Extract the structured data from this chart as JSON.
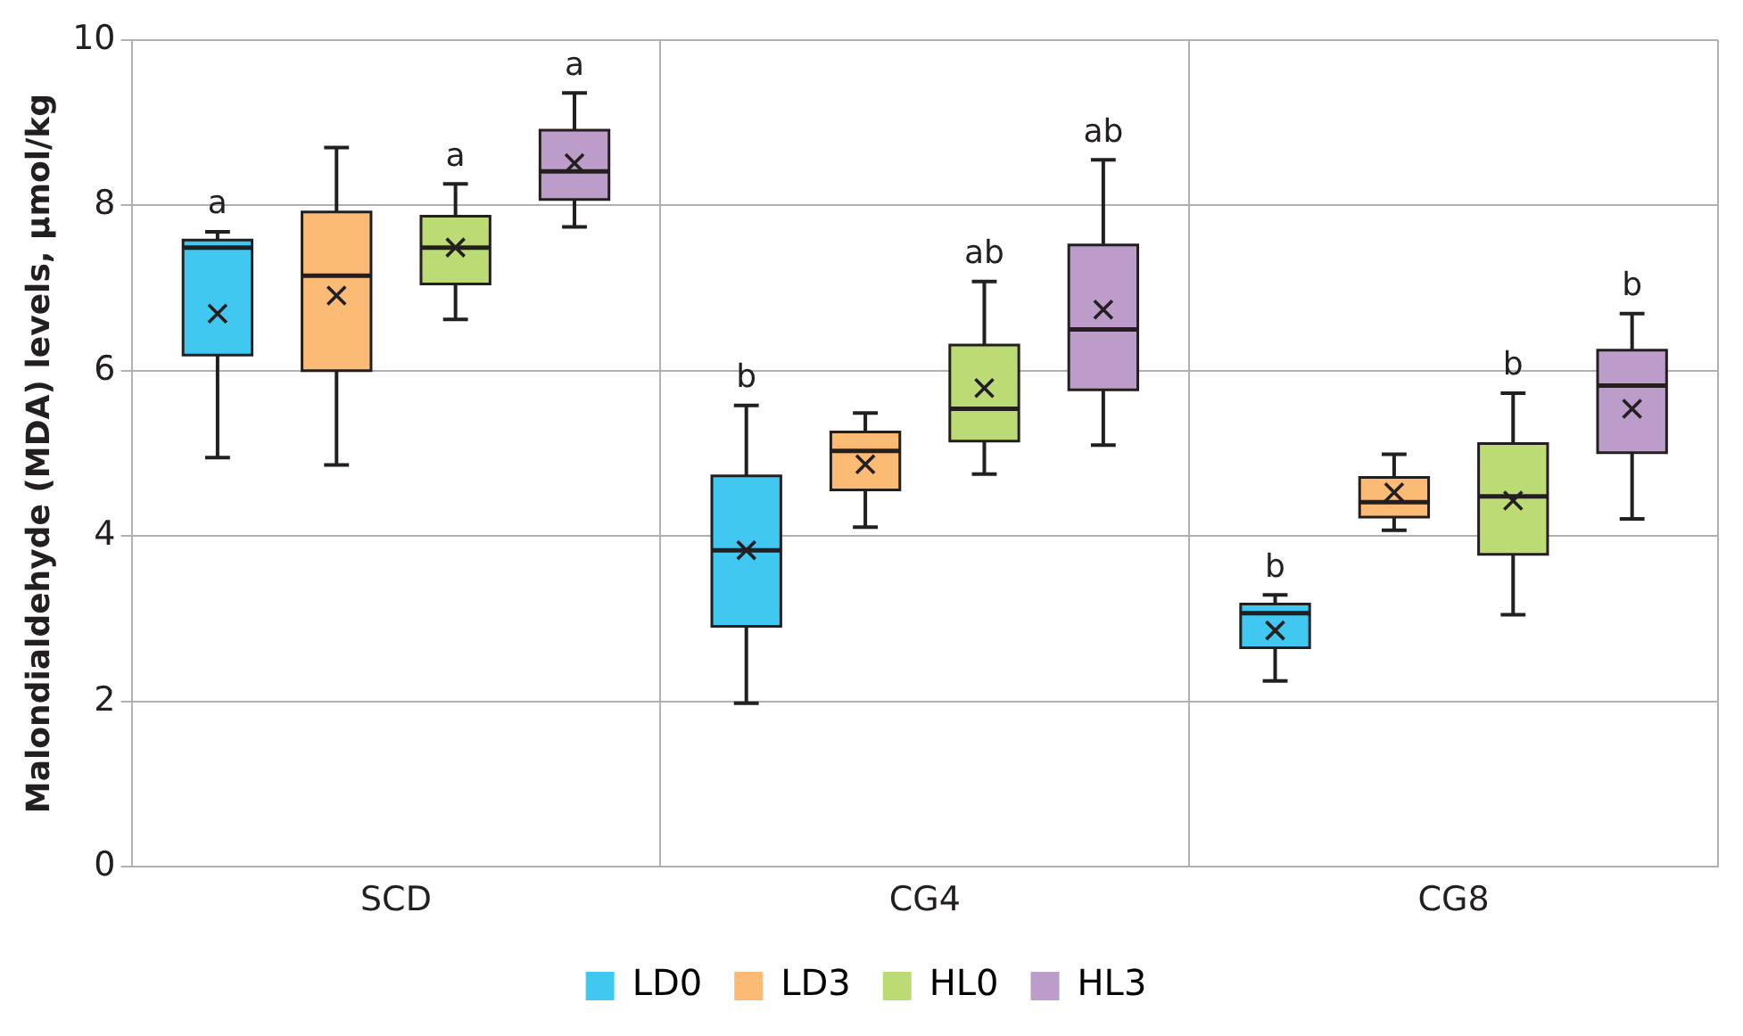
{
  "chart_data": {
    "type": "box",
    "ylabel": "Malondialdehyde (MDA) levels, µmol/kg",
    "categories": [
      "SCD",
      "CG4",
      "CG8"
    ],
    "ylim": [
      0,
      10
    ],
    "yticks": [
      0,
      2,
      4,
      6,
      8,
      10
    ],
    "grid": true,
    "legend": "bottom",
    "series": [
      {
        "name": "LD0",
        "color": "#40c8f0",
        "value_labels": [
          "a",
          "b",
          "b"
        ],
        "boxes": [
          {
            "low": 4.95,
            "q1": 6.19,
            "median": 7.49,
            "q3": 7.58,
            "high": 7.68,
            "mean": 6.69
          },
          {
            "low": 1.98,
            "q1": 2.91,
            "median": 3.83,
            "q3": 4.73,
            "high": 5.58,
            "mean": 3.83
          },
          {
            "low": 2.25,
            "q1": 2.65,
            "median": 3.07,
            "q3": 3.18,
            "high": 3.29,
            "mean": 2.86
          }
        ]
      },
      {
        "name": "LD3",
        "color": "#fbbb74",
        "value_labels": [
          null,
          null,
          null
        ],
        "boxes": [
          {
            "low": 4.86,
            "q1": 6.0,
            "median": 7.15,
            "q3": 7.92,
            "high": 8.7,
            "mean": 6.91
          },
          {
            "low": 4.11,
            "q1": 4.56,
            "median": 5.03,
            "q3": 5.26,
            "high": 5.49,
            "mean": 4.87
          },
          {
            "low": 4.07,
            "q1": 4.23,
            "median": 4.41,
            "q3": 4.71,
            "high": 4.99,
            "mean": 4.53
          }
        ]
      },
      {
        "name": "HL0",
        "color": "#bcdb74",
        "value_labels": [
          "a",
          "ab",
          "b"
        ],
        "boxes": [
          {
            "low": 6.62,
            "q1": 7.05,
            "median": 7.49,
            "q3": 7.87,
            "high": 8.26,
            "mean": 7.49
          },
          {
            "low": 4.75,
            "q1": 5.15,
            "median": 5.54,
            "q3": 6.31,
            "high": 7.08,
            "mean": 5.79
          },
          {
            "low": 3.05,
            "q1": 3.78,
            "median": 4.48,
            "q3": 5.12,
            "high": 5.73,
            "mean": 4.43
          }
        ]
      },
      {
        "name": "HL3",
        "color": "#bc9cc8",
        "value_labels": [
          "a",
          "ab",
          "b"
        ],
        "boxes": [
          {
            "low": 7.74,
            "q1": 8.07,
            "median": 8.41,
            "q3": 8.91,
            "high": 9.36,
            "mean": 8.51
          },
          {
            "low": 5.1,
            "q1": 5.77,
            "median": 6.5,
            "q3": 7.52,
            "high": 8.55,
            "mean": 6.74
          },
          {
            "low": 4.21,
            "q1": 5.01,
            "median": 5.82,
            "q3": 6.25,
            "high": 6.69,
            "mean": 5.54
          }
        ]
      }
    ]
  }
}
